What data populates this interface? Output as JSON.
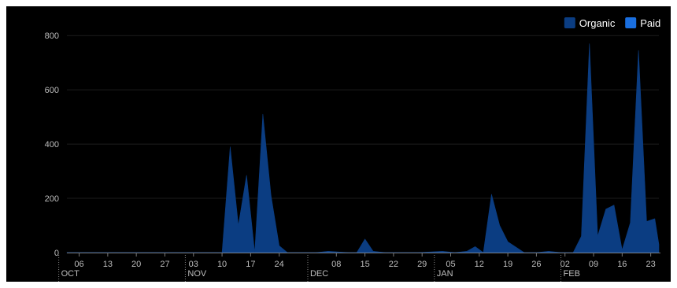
{
  "chart_data": {
    "type": "area",
    "title": "",
    "xlabel": "",
    "ylabel": "",
    "ylim": [
      0,
      850
    ],
    "y_ticks": [
      0,
      200,
      400,
      600,
      800
    ],
    "legend_position": "top-right",
    "grid": true,
    "x_start": "2023-10-03",
    "x_end": "2024-02-25",
    "x_ticks": [
      {
        "date": "2023-10-06",
        "label": "06"
      },
      {
        "date": "2023-10-13",
        "label": "13"
      },
      {
        "date": "2023-10-20",
        "label": "20"
      },
      {
        "date": "2023-10-27",
        "label": "27"
      },
      {
        "date": "2023-11-03",
        "label": "03"
      },
      {
        "date": "2023-11-10",
        "label": "10"
      },
      {
        "date": "2023-11-17",
        "label": "17"
      },
      {
        "date": "2023-11-24",
        "label": "24"
      },
      {
        "date": "2023-12-08",
        "label": "08"
      },
      {
        "date": "2023-12-15",
        "label": "15"
      },
      {
        "date": "2023-12-22",
        "label": "22"
      },
      {
        "date": "2023-12-29",
        "label": "29"
      },
      {
        "date": "2024-01-05",
        "label": "05"
      },
      {
        "date": "2024-01-12",
        "label": "12"
      },
      {
        "date": "2024-01-19",
        "label": "19"
      },
      {
        "date": "2024-01-26",
        "label": "26"
      },
      {
        "date": "2024-02-02",
        "label": "02"
      },
      {
        "date": "2024-02-09",
        "label": "09"
      },
      {
        "date": "2024-02-16",
        "label": "16"
      },
      {
        "date": "2024-02-23",
        "label": "23"
      }
    ],
    "month_labels": [
      {
        "date": "2023-10-01",
        "label": "OCT"
      },
      {
        "date": "2023-11-01",
        "label": "NOV"
      },
      {
        "date": "2023-12-01",
        "label": "DEC"
      },
      {
        "date": "2024-01-01",
        "label": "JAN"
      },
      {
        "date": "2024-02-01",
        "label": "FEB"
      }
    ],
    "series": [
      {
        "name": "Organic",
        "color": "#0b3d82",
        "points": [
          [
            "2023-10-03",
            0
          ],
          [
            "2023-10-10",
            0
          ],
          [
            "2023-10-20",
            0
          ],
          [
            "2023-10-30",
            0
          ],
          [
            "2023-11-07",
            0
          ],
          [
            "2023-11-10",
            0
          ],
          [
            "2023-11-12",
            390
          ],
          [
            "2023-11-14",
            100
          ],
          [
            "2023-11-16",
            285
          ],
          [
            "2023-11-18",
            0
          ],
          [
            "2023-11-20",
            510
          ],
          [
            "2023-11-22",
            210
          ],
          [
            "2023-11-24",
            25
          ],
          [
            "2023-11-26",
            0
          ],
          [
            "2023-12-03",
            0
          ],
          [
            "2023-12-06",
            5
          ],
          [
            "2023-12-11",
            0
          ],
          [
            "2023-12-13",
            0
          ],
          [
            "2023-12-15",
            50
          ],
          [
            "2023-12-17",
            5
          ],
          [
            "2023-12-20",
            0
          ],
          [
            "2023-12-28",
            0
          ],
          [
            "2024-01-03",
            5
          ],
          [
            "2024-01-06",
            0
          ],
          [
            "2024-01-09",
            5
          ],
          [
            "2024-01-11",
            22
          ],
          [
            "2024-01-13",
            0
          ],
          [
            "2024-01-15",
            215
          ],
          [
            "2024-01-17",
            100
          ],
          [
            "2024-01-19",
            40
          ],
          [
            "2024-01-21",
            20
          ],
          [
            "2024-01-23",
            0
          ],
          [
            "2024-01-26",
            0
          ],
          [
            "2024-01-29",
            5
          ],
          [
            "2024-02-01",
            0
          ],
          [
            "2024-02-04",
            0
          ],
          [
            "2024-02-06",
            60
          ],
          [
            "2024-02-08",
            770
          ],
          [
            "2024-02-10",
            60
          ],
          [
            "2024-02-12",
            160
          ],
          [
            "2024-02-14",
            175
          ],
          [
            "2024-02-16",
            10
          ],
          [
            "2024-02-18",
            110
          ],
          [
            "2024-02-20",
            745
          ],
          [
            "2024-02-22",
            115
          ],
          [
            "2024-02-24",
            125
          ],
          [
            "2024-02-25",
            30
          ]
        ]
      },
      {
        "name": "Paid",
        "color": "#1a6fe0",
        "points": [
          [
            "2023-10-03",
            0
          ],
          [
            "2024-02-25",
            0
          ]
        ]
      }
    ]
  }
}
